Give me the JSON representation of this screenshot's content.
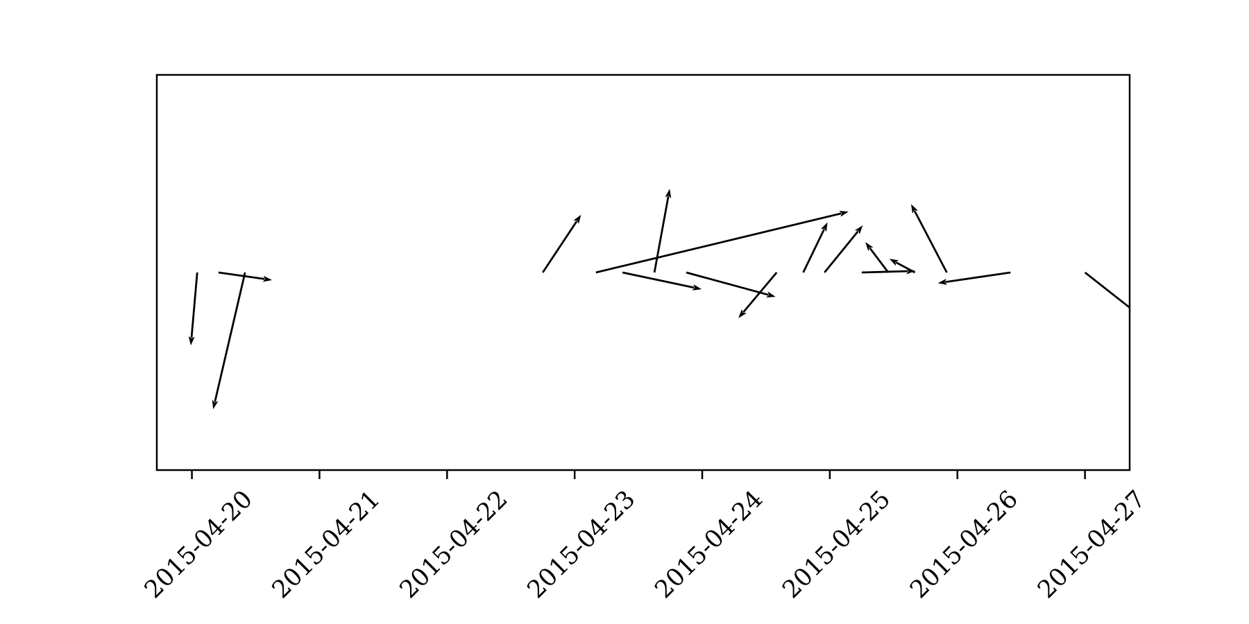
{
  "chart_data": {
    "type": "quiver",
    "title": "",
    "xlabel": "",
    "ylabel": "",
    "x_axis": {
      "scale": "date",
      "ticks": [
        "2015-04-20",
        "2015-04-21",
        "2015-04-22",
        "2015-04-23",
        "2015-04-24",
        "2015-04-25",
        "2015-04-26",
        "2015-04-27"
      ],
      "tick_label_rotation_deg": 45
    },
    "y_axis": {
      "visible": false,
      "ylim": [
        -1.3,
        1.3
      ]
    },
    "xlim": [
      "2015-04-19T17:24",
      "2015-04-27T08:24"
    ],
    "grid": false,
    "legend": "none",
    "arrow_color": "#000000",
    "arrows": [
      {
        "x": "2015-04-20T01:00",
        "u": -0.05,
        "v": -0.48
      },
      {
        "x": "2015-04-20T05:00",
        "u": 0.42,
        "v": -0.05
      },
      {
        "x": "2015-04-20T10:00",
        "u": -0.25,
        "v": -0.9
      },
      {
        "x": "2015-04-22T18:00",
        "u": 0.3,
        "v": 0.38
      },
      {
        "x": "2015-04-23T04:00",
        "u": 1.98,
        "v": 0.4
      },
      {
        "x": "2015-04-23T09:00",
        "u": 0.62,
        "v": -0.11
      },
      {
        "x": "2015-04-23T15:00",
        "u": 0.12,
        "v": 0.55
      },
      {
        "x": "2015-04-23T21:00",
        "u": 0.7,
        "v": -0.16
      },
      {
        "x": "2015-04-24T14:00",
        "u": -0.3,
        "v": -0.3
      },
      {
        "x": "2015-04-24T19:00",
        "u": 0.19,
        "v": 0.33
      },
      {
        "x": "2015-04-24T23:00",
        "u": 0.3,
        "v": 0.31
      },
      {
        "x": "2015-04-25T06:00",
        "u": 0.42,
        "v": 0.01
      },
      {
        "x": "2015-04-25T11:00",
        "u": -0.18,
        "v": 0.2
      },
      {
        "x": "2015-04-25T16:00",
        "u": -0.2,
        "v": 0.09
      },
      {
        "x": "2015-04-25T22:00",
        "u": -0.28,
        "v": 0.45
      },
      {
        "x": "2015-04-26T10:00",
        "u": -0.57,
        "v": -0.07
      },
      {
        "x": "2015-04-27T00:00",
        "u": 0.5,
        "v": -0.33
      }
    ]
  }
}
